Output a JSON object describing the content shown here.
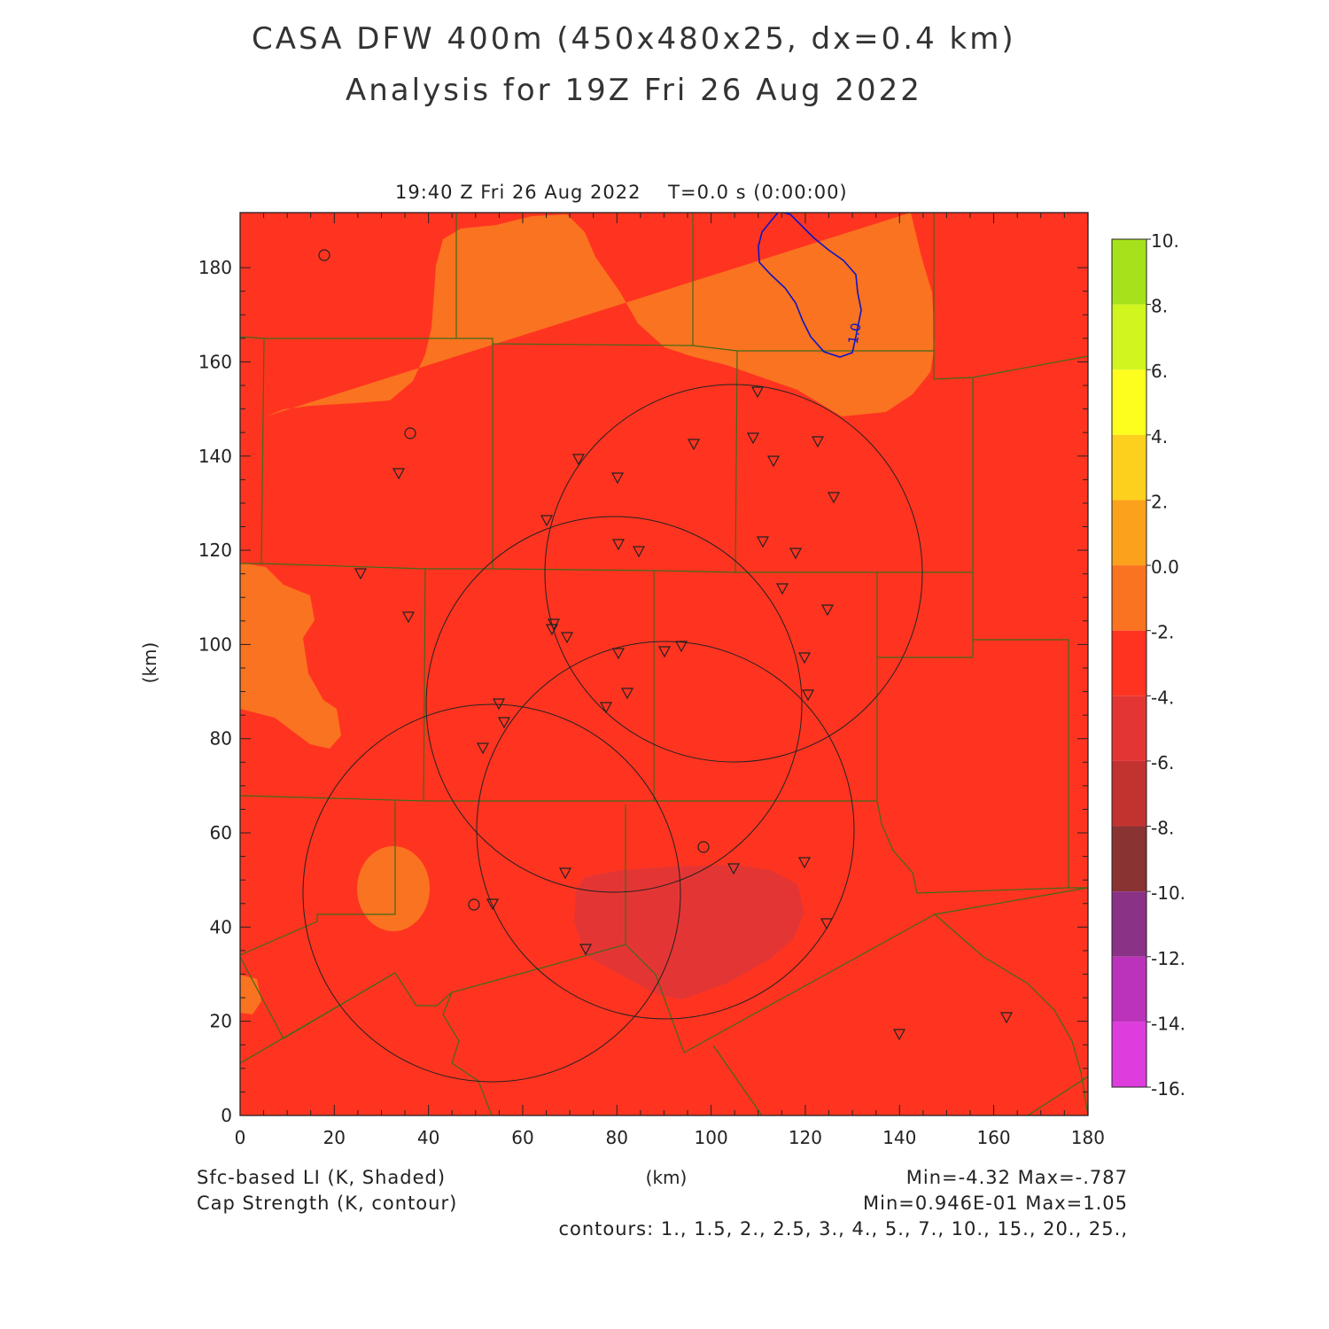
{
  "title_line1": "CASA DFW 400m (450x480x25, dx=0.4 km)",
  "title_line2": "Analysis for 19Z Fri 26 Aug 2022",
  "valid_time": "19:40 Z Fri 26 Aug 2022    T=0.0 s (0:00:00)",
  "x_axis_label": "(km)",
  "y_axis_label": "(km)",
  "x_ticks": [
    "0",
    "20",
    "40",
    "60",
    "80",
    "100",
    "120",
    "140",
    "160",
    "180"
  ],
  "y_ticks": [
    "0",
    "20",
    "40",
    "60",
    "80",
    "100",
    "120",
    "140",
    "160",
    "180"
  ],
  "contour_label": "1.0",
  "footer": {
    "shaded_field": "Sfc-based LI (K, Shaded)",
    "contour_field": "Cap Strength (K, contour)",
    "shaded_range": "Min=-4.32 Max=-.787",
    "contour_range": "Min=0.946E-01 Max=1.05",
    "contours": "contours: 1., 1.5, 2., 2.5, 3., 4., 5., 7., 10., 15., 20., 25.,"
  },
  "colorbar": {
    "labels": [
      "10.",
      "8.",
      "6.",
      "4.",
      "2.",
      "0.0",
      "-2.",
      "-4.",
      "-6.",
      "-8.",
      "-10.",
      "-12.",
      "-14.",
      "-16."
    ],
    "colors": [
      "#a6e21c",
      "#d1f51e",
      "#fefe1e",
      "#fdd01d",
      "#fca11c",
      "#fa7320",
      "#ff3420",
      "#e33634",
      "#c23330",
      "#8a3333",
      "#8a3286",
      "#bb33bb",
      "#dd3ddd"
    ]
  },
  "colors": {
    "li_minus2_to_0": "#fa7320",
    "li_minus4_to_minus2": "#ff3420",
    "li_minus6_to_minus4": "#e33634",
    "county_lines": "#3d6b1a",
    "cap_contour": "#0b16c8"
  },
  "markers": {
    "radar_circles": 4,
    "observation_triangles": 46,
    "observation_circles": 5
  }
}
